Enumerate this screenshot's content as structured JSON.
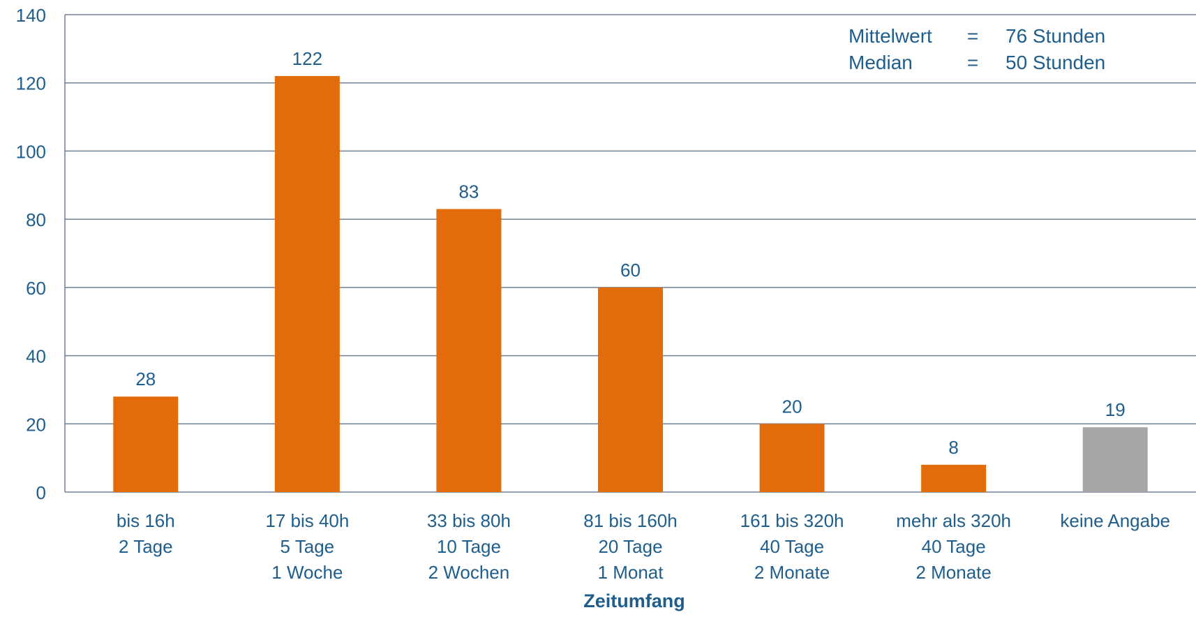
{
  "chart_data": {
    "type": "bar",
    "title": "",
    "xlabel": "Zeitumfang",
    "ylabel": "",
    "ylim": [
      0,
      140
    ],
    "y_ticks": [
      0,
      20,
      40,
      60,
      80,
      100,
      120,
      140
    ],
    "grid": true,
    "categories": [
      [
        "bis 16h",
        "2 Tage"
      ],
      [
        "17 bis 40h",
        "5 Tage",
        "1 Woche"
      ],
      [
        "33 bis 80h",
        "10 Tage",
        "2 Wochen"
      ],
      [
        "81 bis 160h",
        "20 Tage",
        "1 Monat"
      ],
      [
        "161 bis 320h",
        "40 Tage",
        "2 Monate"
      ],
      [
        "mehr als 320h",
        "40 Tage",
        "2 Monate"
      ],
      [
        "keine Angabe"
      ]
    ],
    "values": [
      28,
      122,
      83,
      60,
      20,
      8,
      19
    ],
    "bar_colors": [
      "#E36C0A",
      "#E36C0A",
      "#E36C0A",
      "#E36C0A",
      "#E36C0A",
      "#E36C0A",
      "#A6A6A6"
    ],
    "annotation": {
      "rows": [
        {
          "label": "Mittelwert",
          "sign": "=",
          "value": "76 Stunden"
        },
        {
          "label": "Median",
          "sign": "=",
          "value": "50 Stunden"
        }
      ],
      "placement": "top-right"
    },
    "colors": {
      "text": "#1F5E8C",
      "grid": "#6E7F95"
    }
  }
}
